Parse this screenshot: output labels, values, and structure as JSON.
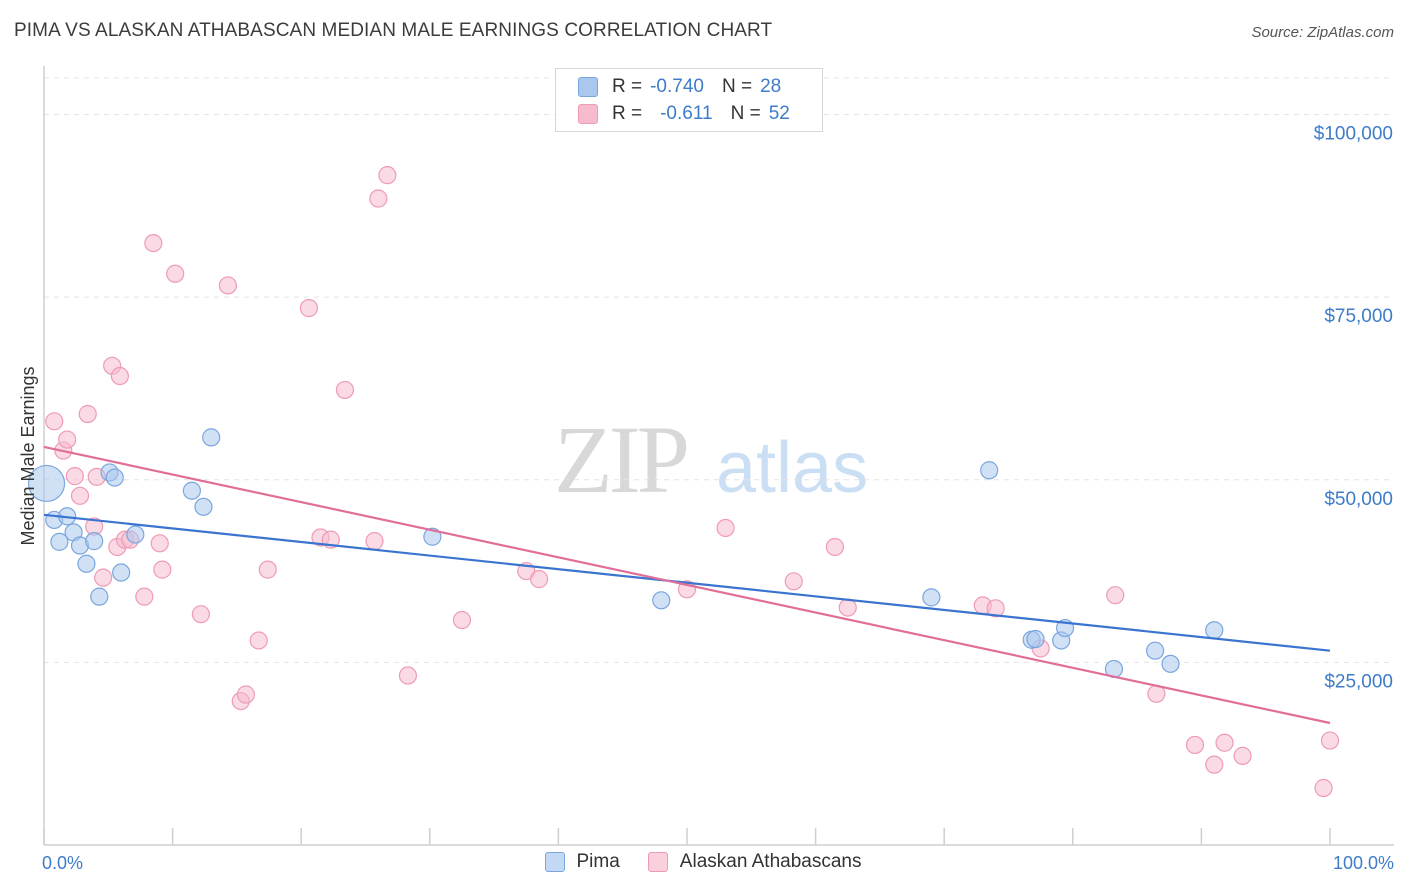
{
  "header": {
    "title": "PIMA VS ALASKAN ATHABASCAN MEDIAN MALE EARNINGS CORRELATION CHART",
    "source": "Source: ZipAtlas.com"
  },
  "watermark": {
    "zip": "ZIP",
    "atlas": "atlas"
  },
  "legend": {
    "rows": [
      {
        "r_label": "R =",
        "r_value": "-0.740",
        "n_label": "N =",
        "n_value": "28"
      },
      {
        "r_label": "R =",
        "r_value": "-0.611",
        "n_label": "N =",
        "n_value": "52"
      }
    ]
  },
  "bottom_legend": {
    "pima": "Pima",
    "athabascan": "Alaskan Athabascans"
  },
  "colors": {
    "pima_fill": "#aac8ee",
    "pima_stroke": "#7aa6de",
    "pima_line": "#3a74d0",
    "ath_fill": "#f6bccd",
    "ath_stroke": "#ef9bb5",
    "ath_line": "#e06e98",
    "tick_text": "#3d7cc9",
    "grid": "#e4e4e4"
  },
  "chart_data": {
    "type": "scatter",
    "title": "PIMA VS ALASKAN ATHABASCAN MEDIAN MALE EARNINGS CORRELATION CHART",
    "xlabel": "",
    "ylabel": "Median Male Earnings",
    "xlim": [
      0,
      100
    ],
    "ylim": [
      0,
      105000
    ],
    "x_tick_labels": [
      "0.0%",
      "100.0%"
    ],
    "y_ticks": [
      25000,
      50000,
      75000,
      100000
    ],
    "y_tick_labels": [
      "$25,000",
      "$50,000",
      "$75,000",
      "$100,000"
    ],
    "grid": true,
    "series": [
      {
        "name": "Pima",
        "r": -0.74,
        "n": 28,
        "trend": {
          "x": [
            0,
            100
          ],
          "y": [
            45200,
            26600
          ]
        },
        "points": [
          {
            "x": 0.2,
            "y": 49500,
            "big": true
          },
          {
            "x": 0.8,
            "y": 44500
          },
          {
            "x": 1.2,
            "y": 41500
          },
          {
            "x": 1.8,
            "y": 45000
          },
          {
            "x": 2.3,
            "y": 42800
          },
          {
            "x": 2.8,
            "y": 41000
          },
          {
            "x": 3.3,
            "y": 38500
          },
          {
            "x": 3.9,
            "y": 41600
          },
          {
            "x": 4.3,
            "y": 34000
          },
          {
            "x": 5.1,
            "y": 51000
          },
          {
            "x": 5.5,
            "y": 50300
          },
          {
            "x": 6.0,
            "y": 37300
          },
          {
            "x": 7.1,
            "y": 42500
          },
          {
            "x": 11.5,
            "y": 48500
          },
          {
            "x": 12.4,
            "y": 46300
          },
          {
            "x": 13.0,
            "y": 55800
          },
          {
            "x": 30.2,
            "y": 42200
          },
          {
            "x": 48.0,
            "y": 33500
          },
          {
            "x": 69.0,
            "y": 33900
          },
          {
            "x": 73.5,
            "y": 51300
          },
          {
            "x": 76.8,
            "y": 28100
          },
          {
            "x": 77.1,
            "y": 28200
          },
          {
            "x": 79.1,
            "y": 28000
          },
          {
            "x": 79.4,
            "y": 29700
          },
          {
            "x": 83.2,
            "y": 24100
          },
          {
            "x": 86.4,
            "y": 26600
          },
          {
            "x": 87.6,
            "y": 24800
          },
          {
            "x": 91.0,
            "y": 29400
          }
        ]
      },
      {
        "name": "Alaskan Athabascans",
        "r": -0.611,
        "n": 52,
        "trend": {
          "x": [
            0,
            100
          ],
          "y": [
            54500,
            16700
          ]
        },
        "points": [
          {
            "x": 0.8,
            "y": 58000
          },
          {
            "x": 1.5,
            "y": 54000
          },
          {
            "x": 1.8,
            "y": 55500
          },
          {
            "x": 2.4,
            "y": 50500
          },
          {
            "x": 2.8,
            "y": 47800
          },
          {
            "x": 3.4,
            "y": 59000
          },
          {
            "x": 3.9,
            "y": 43600
          },
          {
            "x": 4.1,
            "y": 50400
          },
          {
            "x": 4.6,
            "y": 36600
          },
          {
            "x": 5.3,
            "y": 65600
          },
          {
            "x": 5.7,
            "y": 40800
          },
          {
            "x": 5.9,
            "y": 64200
          },
          {
            "x": 6.3,
            "y": 41800
          },
          {
            "x": 6.7,
            "y": 41800
          },
          {
            "x": 7.8,
            "y": 34000
          },
          {
            "x": 8.5,
            "y": 82400
          },
          {
            "x": 9.0,
            "y": 41300
          },
          {
            "x": 9.2,
            "y": 37700
          },
          {
            "x": 10.2,
            "y": 78200
          },
          {
            "x": 12.2,
            "y": 31600
          },
          {
            "x": 14.3,
            "y": 76600
          },
          {
            "x": 15.3,
            "y": 19700
          },
          {
            "x": 15.7,
            "y": 20600
          },
          {
            "x": 16.7,
            "y": 28000
          },
          {
            "x": 17.4,
            "y": 37700
          },
          {
            "x": 20.6,
            "y": 73500
          },
          {
            "x": 21.5,
            "y": 42100
          },
          {
            "x": 22.3,
            "y": 41800
          },
          {
            "x": 23.4,
            "y": 62300
          },
          {
            "x": 25.7,
            "y": 41600
          },
          {
            "x": 26.0,
            "y": 88500
          },
          {
            "x": 26.7,
            "y": 91700
          },
          {
            "x": 28.3,
            "y": 23200
          },
          {
            "x": 32.5,
            "y": 30800
          },
          {
            "x": 37.5,
            "y": 37500
          },
          {
            "x": 38.5,
            "y": 36400
          },
          {
            "x": 50.0,
            "y": 35000
          },
          {
            "x": 53.0,
            "y": 43400
          },
          {
            "x": 58.3,
            "y": 36100
          },
          {
            "x": 61.5,
            "y": 40800
          },
          {
            "x": 62.5,
            "y": 32500
          },
          {
            "x": 73.0,
            "y": 32800
          },
          {
            "x": 74.0,
            "y": 32400
          },
          {
            "x": 77.5,
            "y": 26900
          },
          {
            "x": 83.3,
            "y": 34200
          },
          {
            "x": 86.5,
            "y": 20700
          },
          {
            "x": 89.5,
            "y": 13700
          },
          {
            "x": 91.0,
            "y": 11000
          },
          {
            "x": 91.8,
            "y": 14000
          },
          {
            "x": 93.2,
            "y": 12200
          },
          {
            "x": 99.5,
            "y": 7800
          },
          {
            "x": 100.0,
            "y": 14300
          }
        ]
      }
    ]
  }
}
